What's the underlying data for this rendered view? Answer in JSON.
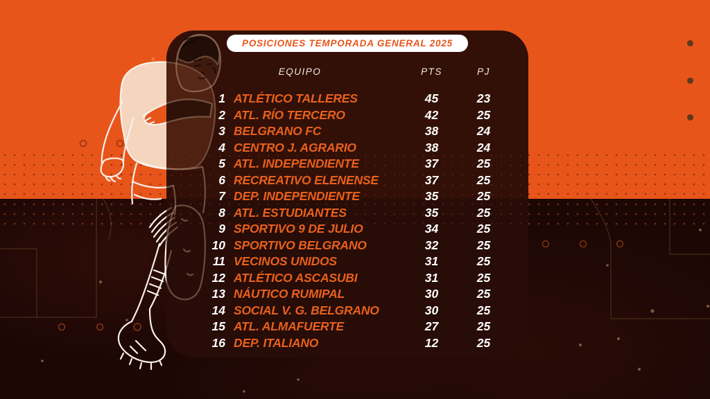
{
  "chart_data": {
    "type": "table",
    "title": "POSICIONES TEMPORADA GENERAL 2025",
    "columns": [
      "EQUIPO",
      "PTS",
      "PJ"
    ],
    "rows": [
      [
        "1",
        "ATLÉTICO TALLERES",
        "45",
        "23"
      ],
      [
        "2",
        "ATL. RÍO TERCERO",
        "42",
        "25"
      ],
      [
        "3",
        "BELGRANO FC",
        "38",
        "24"
      ],
      [
        "4",
        "CENTRO J. AGRARIO",
        "38",
        "24"
      ],
      [
        "5",
        "ATL. INDEPENDIENTE",
        "37",
        "25"
      ],
      [
        "6",
        "RECREATIVO ELENENSE",
        "37",
        "25"
      ],
      [
        "7",
        "DEP. INDEPENDIENTE",
        "35",
        "25"
      ],
      [
        "8",
        "ATL. ESTUDIANTES",
        "35",
        "25"
      ],
      [
        "9",
        "SPORTIVO 9 DE JULIO",
        "34",
        "25"
      ],
      [
        "10",
        "SPORTIVO BELGRANO",
        "32",
        "25"
      ],
      [
        "11",
        "VECINOS UNIDOS",
        "31",
        "25"
      ],
      [
        "12",
        "ATLÉTICO ASCASUBI",
        "31",
        "25"
      ],
      [
        "13",
        "NÁUTICO RUMIPAL",
        "30",
        "25"
      ],
      [
        "14",
        "SOCIAL V. G. BELGRANO",
        "30",
        "25"
      ],
      [
        "15",
        "ATL. ALMAFUERTE",
        "27",
        "25"
      ],
      [
        "16",
        "DEP. ITALIANO",
        "12",
        "25"
      ]
    ]
  },
  "colors": {
    "orange": "#E8551A",
    "dark_background": "#1D0705",
    "panel": "#2F1109",
    "pill_background": "#FFFFFF",
    "title_text": "#E8551A",
    "team_text": "#E7601D",
    "number_text": "#FFFFFF",
    "header_text": "#F2EAE4",
    "corner_dot": "#5E3720"
  }
}
